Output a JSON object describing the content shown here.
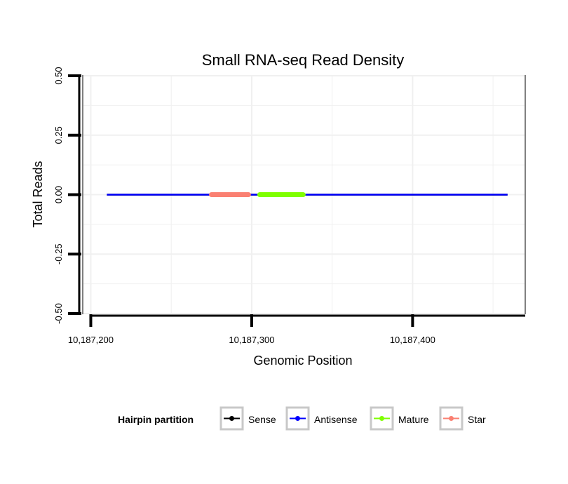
{
  "chart_data": {
    "type": "line",
    "title": "Small RNA-seq Read Density",
    "xlabel": "Genomic Position",
    "ylabel": "Total Reads",
    "xlim": [
      10187195,
      10187470
    ],
    "ylim": [
      -0.5,
      0.5
    ],
    "x_ticks": [
      10187200,
      10187300,
      10187400
    ],
    "x_tick_labels": [
      "10,187,200",
      "10,187,300",
      "10,187,400"
    ],
    "y_ticks": [
      -0.5,
      -0.25,
      0,
      0.25,
      0.5
    ],
    "y_tick_labels": [
      "-0.50",
      "-0.25",
      "0.00",
      "0.25",
      "0.50"
    ],
    "grid": true,
    "legend_position": "bottom",
    "legend_title": "Hairpin partition",
    "series": [
      {
        "name": "Sense",
        "color": "#000000",
        "x": [
          10187210,
          10187459
        ],
        "y": [
          0,
          0
        ]
      },
      {
        "name": "Antisense",
        "color": "#0000ff",
        "x": [
          10187210,
          10187459
        ],
        "y": [
          0,
          0
        ]
      },
      {
        "name": "Mature",
        "color": "#7fff00",
        "x": [
          10187305,
          10187332
        ],
        "y": [
          0,
          0
        ]
      },
      {
        "name": "Star",
        "color": "#fa8072",
        "x": [
          10187275,
          10187298
        ],
        "y": [
          0,
          0
        ]
      }
    ]
  }
}
